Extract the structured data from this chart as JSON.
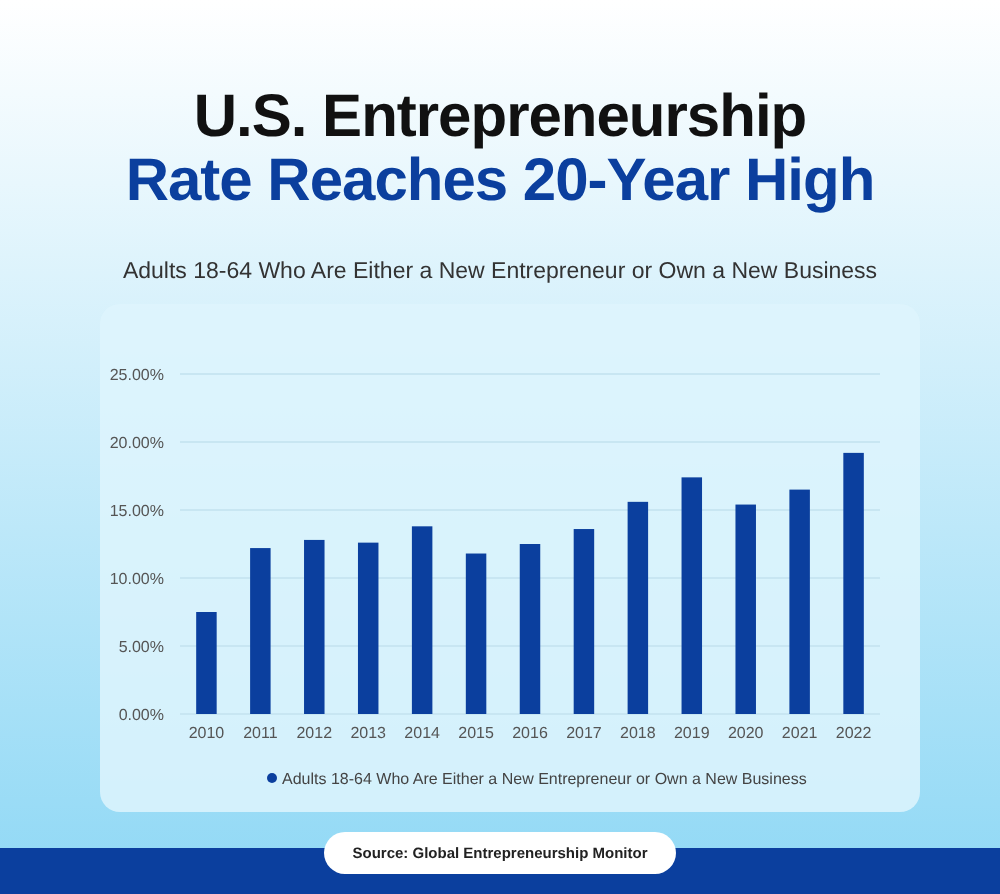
{
  "chart_data": {
    "type": "bar",
    "title": "U.S. Entrepreneurship\nRate Reaches 20-Year High",
    "subtitle": "Adults 18-64 Who Are Either a New Entrepreneur or Own a New Business",
    "categories": [
      "2010",
      "2011",
      "2012",
      "2013",
      "2014",
      "2015",
      "2016",
      "2017",
      "2018",
      "2019",
      "2020",
      "2021",
      "2022"
    ],
    "series": [
      {
        "name": "Adults 18-64 Who Are Either a New Entrepreneur or Own a New Business",
        "color": "#0b3f9e",
        "values": [
          7.5,
          12.2,
          12.8,
          12.6,
          13.8,
          11.8,
          12.5,
          13.6,
          15.6,
          17.4,
          15.4,
          16.5,
          19.2
        ]
      }
    ],
    "ylim": [
      0,
      25
    ],
    "yticks": [
      {
        "value": 0,
        "label": "0.00%"
      },
      {
        "value": 5,
        "label": "5.00%"
      },
      {
        "value": 10,
        "label": "10.00%"
      },
      {
        "value": 15,
        "label": "15.00%"
      },
      {
        "value": 20,
        "label": "20.00%"
      },
      {
        "value": 25,
        "label": "25.00%"
      }
    ],
    "grid": "y",
    "legend": "bottom",
    "annotations": [
      "Source: Global Entrepreneurship Monitor"
    ]
  }
}
